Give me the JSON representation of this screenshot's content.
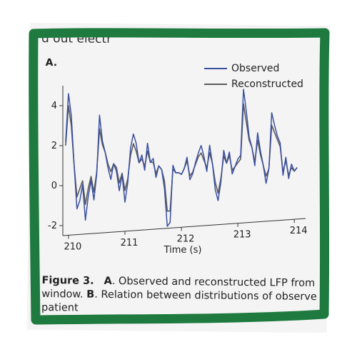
{
  "document": {
    "top_snippet": "d out electr",
    "panel_label": "A.",
    "caption": {
      "figure_label": "Figure 3.",
      "part_a_label": "A",
      "part_a_text": ". Observed and reconstructed LFP from",
      "line2_start": "window. ",
      "part_b_label": "B",
      "part_b_text": ". Relation between distributions of observe",
      "line3": "patient"
    }
  },
  "chart_data": {
    "type": "line",
    "xlabel": "Time (s)",
    "ylabel": "",
    "xlim": [
      209.9,
      214.2
    ],
    "ylim": [
      -2.5,
      5.0
    ],
    "xticks": [
      210,
      211,
      212,
      213,
      214
    ],
    "yticks": [
      -2,
      0,
      2,
      4
    ],
    "legend_position": "top-right",
    "grid": false,
    "series": [
      {
        "name": "Observed",
        "color": "#3a4fa0",
        "x": [
          209.95,
          210.0,
          210.05,
          210.1,
          210.15,
          210.2,
          210.25,
          210.3,
          210.35,
          210.4,
          210.45,
          210.5,
          210.55,
          210.6,
          210.65,
          210.7,
          210.75,
          210.8,
          210.85,
          210.9,
          210.95,
          211.0,
          211.05,
          211.1,
          211.15,
          211.2,
          211.25,
          211.3,
          211.35,
          211.4,
          211.45,
          211.5,
          211.55,
          211.6,
          211.65,
          211.7,
          211.75,
          211.8,
          211.85,
          211.9,
          211.95,
          212.0,
          212.05,
          212.1,
          212.15,
          212.2,
          212.25,
          212.3,
          212.35,
          212.4,
          212.45,
          212.5,
          212.55,
          212.6,
          212.65,
          212.7,
          212.75,
          212.8,
          212.85,
          212.9,
          212.95,
          213.0,
          213.05,
          213.1,
          213.15,
          213.2,
          213.25,
          213.3,
          213.35,
          213.4,
          213.45,
          213.5,
          213.55,
          213.6,
          213.65,
          213.7,
          213.75,
          213.8,
          213.85,
          213.9,
          213.95,
          214.0,
          214.05
        ],
        "y": [
          2.2,
          4.6,
          3.5,
          1.0,
          -1.2,
          -0.8,
          0.0,
          -1.8,
          -0.6,
          0.2,
          -0.8,
          0.5,
          3.5,
          2.2,
          1.6,
          0.8,
          0.2,
          1.0,
          0.6,
          -0.4,
          0.4,
          -1.0,
          0.0,
          1.8,
          2.5,
          2.0,
          1.0,
          1.4,
          0.6,
          2.0,
          1.0,
          1.2,
          0.2,
          0.8,
          0.6,
          -0.4,
          -2.4,
          -2.2,
          0.8,
          0.4,
          0.4,
          0.3,
          0.6,
          1.2,
          0.0,
          0.3,
          0.9,
          1.4,
          1.8,
          1.2,
          0.4,
          1.8,
          0.8,
          -0.6,
          -1.2,
          -0.2,
          1.5,
          0.8,
          1.4,
          0.2,
          0.6,
          1.0,
          1.2,
          4.8,
          3.6,
          2.2,
          1.6,
          0.6,
          2.4,
          1.4,
          0.6,
          -0.4,
          0.4,
          3.5,
          2.8,
          2.2,
          1.8,
          0.0,
          1.0,
          -0.2,
          0.6,
          0.2,
          0.4
        ]
      },
      {
        "name": "Reconstructed",
        "color": "#5a5a5a",
        "x": [
          209.95,
          210.0,
          210.05,
          210.1,
          210.15,
          210.2,
          210.25,
          210.3,
          210.35,
          210.4,
          210.45,
          210.5,
          210.55,
          210.6,
          210.65,
          210.7,
          210.75,
          210.8,
          210.85,
          210.9,
          210.95,
          211.0,
          211.05,
          211.1,
          211.15,
          211.2,
          211.25,
          211.3,
          211.35,
          211.4,
          211.45,
          211.5,
          211.55,
          211.6,
          211.65,
          211.7,
          211.75,
          211.8,
          211.85,
          211.9,
          211.95,
          212.0,
          212.05,
          212.1,
          212.15,
          212.2,
          212.25,
          212.3,
          212.35,
          212.4,
          212.45,
          212.5,
          212.55,
          212.6,
          212.65,
          212.7,
          212.75,
          212.8,
          212.85,
          212.9,
          212.95,
          213.0,
          213.05,
          213.1,
          213.15,
          213.2,
          213.25,
          213.3,
          213.35,
          213.4,
          213.45,
          213.5,
          213.55,
          213.6,
          213.65,
          213.7,
          213.75,
          213.8,
          213.85,
          213.9,
          213.95,
          214.0,
          214.05
        ],
        "y": [
          2.0,
          4.0,
          3.0,
          1.0,
          -0.6,
          -0.2,
          0.2,
          -1.0,
          -0.2,
          0.4,
          -0.4,
          0.6,
          2.8,
          2.0,
          1.6,
          1.0,
          0.6,
          1.0,
          0.8,
          0.0,
          0.5,
          -0.4,
          0.2,
          1.4,
          2.0,
          1.6,
          1.0,
          1.2,
          0.8,
          1.6,
          1.0,
          1.0,
          0.4,
          0.8,
          0.6,
          0.0,
          -1.6,
          -1.6,
          0.6,
          0.4,
          0.4,
          0.3,
          0.6,
          1.0,
          0.2,
          0.4,
          0.8,
          1.2,
          1.4,
          1.0,
          0.6,
          1.4,
          0.8,
          -0.2,
          -0.8,
          0.0,
          1.2,
          0.8,
          1.2,
          0.4,
          0.6,
          0.8,
          1.0,
          4.0,
          3.0,
          2.0,
          1.6,
          0.8,
          2.0,
          1.2,
          0.6,
          0.0,
          0.4,
          2.8,
          2.4,
          2.0,
          1.6,
          0.2,
          0.8,
          0.0,
          0.4,
          0.2,
          0.4
        ]
      }
    ]
  }
}
